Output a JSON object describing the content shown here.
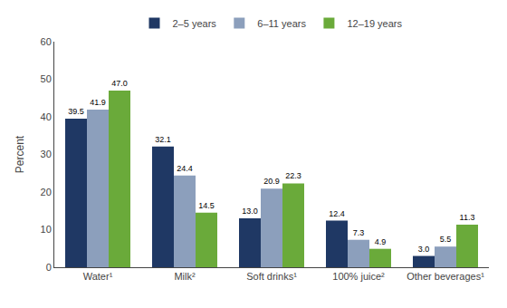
{
  "chart_data": {
    "type": "bar",
    "categories": [
      "Water¹",
      "Milk²",
      "Soft drinks¹",
      "100% juice²",
      "Other beverages¹"
    ],
    "series": [
      {
        "name": "2–5 years",
        "color": "#1f3864",
        "values": [
          39.5,
          32.1,
          13.0,
          12.4,
          3.0
        ],
        "value_labels": [
          "39.5",
          "32.1",
          "13.0",
          "12.4",
          "3.0"
        ]
      },
      {
        "name": "6–11 years",
        "color": "#8c9fbc",
        "values": [
          41.9,
          24.4,
          20.9,
          7.3,
          5.5
        ],
        "value_labels": [
          "41.9",
          "24.4",
          "20.9",
          "7.3",
          "5.5"
        ]
      },
      {
        "name": "12–19 years",
        "color": "#6aaa3a",
        "values": [
          47.0,
          14.5,
          22.3,
          4.9,
          11.3
        ],
        "value_labels": [
          "47.0",
          "14.5",
          "22.3",
          "4.9",
          "11.3"
        ]
      }
    ],
    "ylabel": "Percent",
    "ylim": [
      0,
      60
    ],
    "yticks": [
      0,
      10,
      20,
      30,
      40,
      50,
      60
    ],
    "grid": false,
    "legend": "top",
    "data_labels": true
  }
}
